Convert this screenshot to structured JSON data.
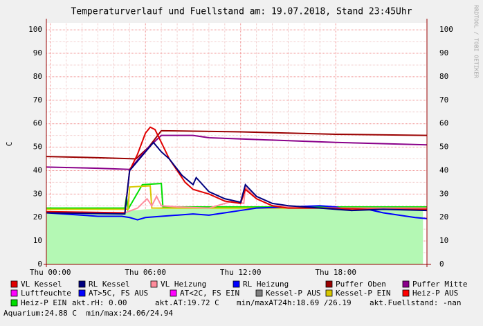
{
  "chart_data": {
    "type": "line",
    "title": "Temperaturverlauf und Fuellstand am: 19.07.2018, Stand 23:45Uhr",
    "ylabel": "C",
    "watermark": "RRDTOOL / TOBI OETIKER",
    "xlim": [
      -0.25,
      23.75
    ],
    "xticks": [
      {
        "value": 0,
        "label": "Thu 00:00"
      },
      {
        "value": 6,
        "label": "Thu 06:00"
      },
      {
        "value": 12,
        "label": "Thu 12:00"
      },
      {
        "value": 18,
        "label": "Thu 18:00"
      }
    ],
    "ylim": [
      0,
      103
    ],
    "yticks": [
      0,
      10,
      20,
      30,
      40,
      50,
      60,
      70,
      80,
      90,
      100
    ],
    "grid": true,
    "area": {
      "color": "#b4f8b4",
      "x": [
        -0.25,
        3,
        4.8,
        5.2,
        6,
        8,
        10,
        12,
        14,
        16,
        18,
        20,
        22,
        23.5
      ],
      "values": [
        22,
        22,
        22,
        23,
        23.5,
        24,
        24,
        24,
        24.5,
        24.5,
        24,
        24,
        24,
        24
      ]
    },
    "series": [
      {
        "name": "VL Kessel",
        "color": "#e00000",
        "x": [
          -0.25,
          4.7,
          5.0,
          5.5,
          6.0,
          6.3,
          6.6,
          7.0,
          7.5,
          8.5,
          9.0,
          10,
          11,
          12,
          12.3,
          13,
          14,
          15,
          17,
          20,
          23.75
        ],
        "values": [
          22.5,
          22,
          40,
          47,
          56,
          58.5,
          57.5,
          52,
          45,
          35,
          32,
          30,
          27,
          26,
          32,
          28,
          25,
          24,
          24,
          23.5,
          23.5
        ]
      },
      {
        "name": "RL Kessel",
        "color": "#00007f",
        "x": [
          -0.25,
          4.7,
          5.0,
          5.5,
          6.0,
          6.5,
          7.0,
          7.5,
          8.3,
          9.0,
          9.2,
          10,
          11,
          12,
          12.3,
          13,
          14,
          15,
          17,
          19,
          21,
          23.75
        ],
        "values": [
          22,
          21.5,
          40,
          44,
          48,
          52,
          48,
          45,
          38,
          34,
          37,
          31,
          28,
          26.5,
          34,
          29,
          26,
          25,
          24,
          23,
          23.5,
          23
        ]
      },
      {
        "name": "VL Heizung",
        "color": "#ff8c9c",
        "x": [
          -0.25,
          4.7,
          5.5,
          6.1,
          6.4,
          6.7,
          7.0,
          8,
          10,
          11.5,
          12.2,
          12.3,
          13,
          14,
          16,
          20,
          23.75
        ],
        "values": [
          22,
          22,
          24,
          28,
          25,
          29,
          25,
          24.5,
          24,
          27,
          26,
          33,
          28,
          25,
          24,
          24,
          24
        ]
      },
      {
        "name": "RL Heizung",
        "color": "#0000ff",
        "x": [
          -0.25,
          2,
          3,
          4.5,
          5,
          5.5,
          6,
          7,
          8,
          9,
          10,
          11,
          12,
          13,
          15,
          17,
          18,
          19,
          20,
          21,
          22,
          23,
          23.75
        ],
        "values": [
          22,
          21,
          20.5,
          20.5,
          20,
          19,
          20,
          20.5,
          21,
          21.5,
          21,
          22,
          23,
          24,
          24.5,
          25,
          24.5,
          23,
          23.5,
          22,
          21,
          20,
          19.5
        ]
      },
      {
        "name": "Puffer Oben",
        "color": "#9a0000",
        "x": [
          -0.25,
          3,
          5.4,
          6.2,
          7,
          12,
          18,
          23.75
        ],
        "values": [
          46,
          45.5,
          45,
          50,
          57,
          56.5,
          55.5,
          55
        ]
      },
      {
        "name": "Puffer Mitte",
        "color": "#8a008a",
        "x": [
          -0.25,
          3,
          5,
          6.2,
          7,
          9,
          10,
          14,
          18,
          23.75
        ],
        "values": [
          41.5,
          41,
          40.5,
          50,
          55,
          55,
          54,
          53,
          52,
          51
        ]
      },
      {
        "name": "Luftfeuchte",
        "color": "#ff00ff",
        "x": [],
        "values": []
      },
      {
        "name": "AT>5C, FS AUS",
        "color": "#0000ff",
        "x": [],
        "values": []
      },
      {
        "name": "AT<2C, FS EIN",
        "color": "#ff00ff",
        "x": [],
        "values": []
      },
      {
        "name": "Kessel-P AUS",
        "color": "#808080",
        "x": [],
        "values": []
      },
      {
        "name": "Kessel-P EIN",
        "color": "#d8c800",
        "x": [
          -0.25,
          4.9,
          5.0,
          6.3,
          6.4,
          23.75
        ],
        "values": [
          23.5,
          23.5,
          33,
          33.5,
          24,
          24
        ]
      },
      {
        "name": "Heiz-P AUS",
        "color": "#ff0000",
        "x": [],
        "values": []
      },
      {
        "name": "Heiz-P EIN",
        "color": "#00e000",
        "x": [
          -0.25,
          4.7,
          4.8,
          4.9,
          5.8,
          7.0,
          7.1,
          23.75
        ],
        "values": [
          24,
          24,
          29,
          23.5,
          34,
          34.5,
          24.5,
          24.5
        ]
      }
    ],
    "notes": [
      "akt.rH: 0.00",
      "akt.AT:19.72 C",
      "min/maxAT24h:18.69 /26.19",
      "akt.Fuellstand: -nan",
      "Aquarium:24.88 C  min/max:24.06/24.94"
    ]
  }
}
